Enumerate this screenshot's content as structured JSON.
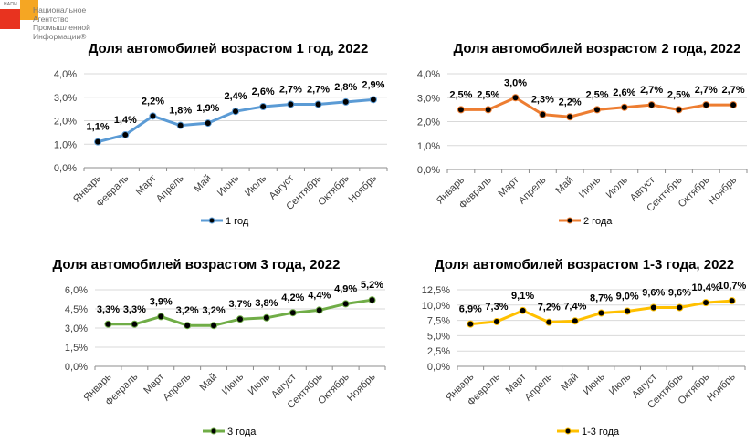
{
  "logo": {
    "abbr": "НАПИ",
    "lines": [
      "Национальное",
      "Агентство",
      "Промышленной",
      "Информации®"
    ],
    "colors": {
      "red": "#e8331f",
      "orange": "#f5a623"
    }
  },
  "chart_data": [
    {
      "type": "line",
      "title": "Доля автомобилей возрастом 1 год, 2022",
      "categories": [
        "Январь",
        "Февраль",
        "Март",
        "Апрель",
        "Май",
        "Июнь",
        "Июль",
        "Август",
        "Сентябрь",
        "Октябрь",
        "Ноябрь"
      ],
      "series": [
        {
          "name": "1 год",
          "values": [
            1.1,
            1.4,
            2.2,
            1.8,
            1.9,
            2.4,
            2.6,
            2.7,
            2.7,
            2.8,
            2.9
          ],
          "labels": [
            "1,1%",
            "1,4%",
            "2,2%",
            "1,8%",
            "1,9%",
            "2,4%",
            "2,6%",
            "2,7%",
            "2,7%",
            "2,8%",
            "2,9%"
          ],
          "color": "#5b9bd5"
        }
      ],
      "ylim": [
        0,
        4
      ],
      "yticks": [
        "0,0%",
        "1,0%",
        "2,0%",
        "3,0%",
        "4,0%"
      ],
      "xlabel": "",
      "ylabel": "",
      "grid": true,
      "legend": "bottom"
    },
    {
      "type": "line",
      "title": "Доля автомобилей возрастом 2 года, 2022",
      "categories": [
        "Январь",
        "Февраль",
        "Март",
        "Апрель",
        "Май",
        "Июнь",
        "Июль",
        "Август",
        "Сентябрь",
        "Октябрь",
        "Ноябрь"
      ],
      "series": [
        {
          "name": "2 года",
          "values": [
            2.5,
            2.5,
            3.0,
            2.3,
            2.2,
            2.5,
            2.6,
            2.7,
            2.5,
            2.7,
            2.7
          ],
          "labels": [
            "2,5%",
            "2,5%",
            "3,0%",
            "2,3%",
            "2,2%",
            "2,5%",
            "2,6%",
            "2,7%",
            "2,5%",
            "2,7%",
            "2,7%"
          ],
          "color": "#ed7d31"
        }
      ],
      "ylim": [
        0,
        4
      ],
      "yticks": [
        "0,0%",
        "1,0%",
        "2,0%",
        "3,0%",
        "4,0%"
      ],
      "xlabel": "",
      "ylabel": "",
      "grid": true,
      "legend": "bottom"
    },
    {
      "type": "line",
      "title": "Доля автомобилей возрастом 3 года, 2022",
      "categories": [
        "Январь",
        "Февраль",
        "Март",
        "Апрель",
        "Май",
        "Июнь",
        "Июль",
        "Август",
        "Сентябрь",
        "Октябрь",
        "Ноябрь"
      ],
      "series": [
        {
          "name": "3 года",
          "values": [
            3.3,
            3.3,
            3.9,
            3.2,
            3.2,
            3.7,
            3.8,
            4.2,
            4.4,
            4.9,
            5.2
          ],
          "labels": [
            "3,3%",
            "3,3%",
            "3,9%",
            "3,2%",
            "3,2%",
            "3,7%",
            "3,8%",
            "4,2%",
            "4,4%",
            "4,9%",
            "5,2%"
          ],
          "color": "#70ad47"
        }
      ],
      "ylim": [
        0,
        6
      ],
      "yticks": [
        "0,0%",
        "1,5%",
        "3,0%",
        "4,5%",
        "6,0%"
      ],
      "xlabel": "",
      "ylabel": "",
      "grid": true,
      "legend": "bottom"
    },
    {
      "type": "line",
      "title": "Доля автомобилей возрастом 1-3 года, 2022",
      "categories": [
        "Январь",
        "Февраль",
        "Март",
        "Апрель",
        "Май",
        "Июнь",
        "Июль",
        "Август",
        "Сентябрь",
        "Октябрь",
        "Ноябрь"
      ],
      "series": [
        {
          "name": "1-3 года",
          "values": [
            6.9,
            7.3,
            9.1,
            7.2,
            7.4,
            8.7,
            9.0,
            9.6,
            9.6,
            10.4,
            10.7
          ],
          "labels": [
            "6,9%",
            "7,3%",
            "9,1%",
            "7,2%",
            "7,4%",
            "8,7%",
            "9,0%",
            "9,6%",
            "9,6%",
            "10,4%",
            "10,7%"
          ],
          "color": "#ffc000"
        }
      ],
      "ylim": [
        0,
        12.5
      ],
      "yticks": [
        "0,0%",
        "2,5%",
        "5,0%",
        "7,5%",
        "10,0%",
        "12,5%"
      ],
      "xlabel": "",
      "ylabel": "",
      "grid": true,
      "legend": "bottom"
    }
  ]
}
